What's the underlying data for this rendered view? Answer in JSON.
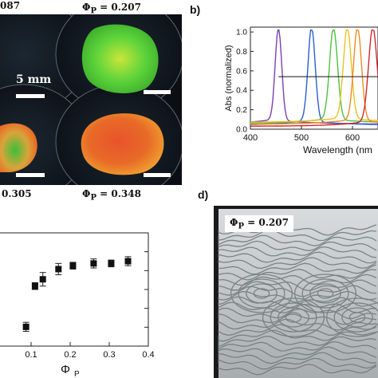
{
  "panel_a": {
    "top_left_value": "087",
    "top_right_value": "Φ<sub>P</sub> = 0.207",
    "bottom_left_value": "0.305",
    "bottom_right_value": "Φ<sub>P</sub> = 0.348",
    "scale_label": "5 mm",
    "colors": {
      "green": "#5bd33a",
      "orange": "#e86a28",
      "background": "#0b0f14"
    }
  },
  "panel_b": {
    "label": "b)",
    "chart_data": {
      "type": "line",
      "xlabel": "Wavelength (nm",
      "ylabel": "Abs (normalized)",
      "xlim": [
        400,
        650
      ],
      "ylim": [
        0,
        1.05
      ],
      "x_ticks": [
        "400",
        "500",
        "600"
      ],
      "y_ticks": [
        "0.0",
        "0.2",
        "0.4",
        "0.6",
        "0.8",
        "1.0"
      ],
      "series": [
        {
          "color": "#7b3fb5",
          "peak": 455,
          "width": 9,
          "baseline": 0.05
        },
        {
          "color": "#2c5fd0",
          "peak": 520,
          "width": 10,
          "baseline": 0.04
        },
        {
          "color": "#4fbf3f",
          "peak": 563,
          "width": 11,
          "baseline": 0.06
        },
        {
          "color": "#e8c224",
          "peak": 590,
          "width": 11,
          "baseline": 0.07
        },
        {
          "color": "#f08a24",
          "peak": 610,
          "width": 11,
          "baseline": 0.05
        },
        {
          "color": "#d2262a",
          "peak": 640,
          "width": 12,
          "baseline": 0.03
        }
      ],
      "arrow": {
        "x_start": 455,
        "x_end": 650,
        "y": 0.54
      }
    }
  },
  "panel_c": {
    "chart_data": {
      "type": "scatter",
      "xlabel": "Φ",
      "xlabel_sub": "P",
      "xlim": [
        0,
        0.4
      ],
      "ylim": [
        0,
        1
      ],
      "x_ticks": [
        "0.1",
        "0.2",
        "0.3",
        "0.4"
      ],
      "points": [
        {
          "x": 0.087,
          "y": 0.17,
          "err": 0.04
        },
        {
          "x": 0.11,
          "y": 0.53,
          "err": 0.03
        },
        {
          "x": 0.13,
          "y": 0.59,
          "err": 0.06
        },
        {
          "x": 0.17,
          "y": 0.68,
          "err": 0.05
        },
        {
          "x": 0.207,
          "y": 0.71,
          "err": 0.03
        },
        {
          "x": 0.26,
          "y": 0.73,
          "err": 0.04
        },
        {
          "x": 0.305,
          "y": 0.73,
          "err": 0.03
        },
        {
          "x": 0.348,
          "y": 0.75,
          "err": 0.04
        }
      ]
    }
  },
  "panel_d": {
    "label": "d)",
    "phi_text": "Φ<sub>P</sub> = 0.207"
  }
}
